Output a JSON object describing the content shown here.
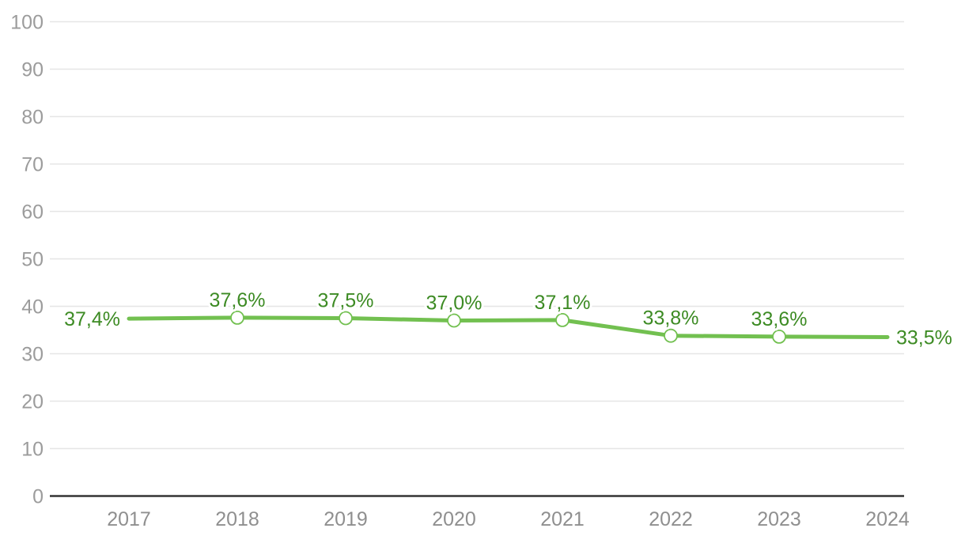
{
  "chart_data": {
    "type": "line",
    "title": "",
    "categories": [
      "2017",
      "2018",
      "2019",
      "2020",
      "2021",
      "2022",
      "2023",
      "2024"
    ],
    "series": [
      {
        "name": "percentage-series",
        "values": [
          37.4,
          37.6,
          37.5,
          37.0,
          37.1,
          33.8,
          33.6,
          33.5
        ],
        "value_labels": [
          "37,4%",
          "37,6%",
          "37,5%",
          "37,0%",
          "37,1%",
          "33,8%",
          "33,6%",
          "33,5%"
        ]
      }
    ],
    "xlabel": "",
    "ylabel": "",
    "ylim": [
      0,
      100
    ],
    "yticks": [
      0,
      10,
      20,
      30,
      40,
      50,
      60,
      70,
      80,
      90,
      100
    ],
    "ytick_labels": [
      "0",
      "10",
      "20",
      "30",
      "40",
      "50",
      "60",
      "70",
      "80",
      "90",
      "100"
    ],
    "grid": true,
    "legend": "none",
    "marker_style": "open-circle",
    "markers_on_categories": [
      "2018",
      "2019",
      "2020",
      "2021",
      "2022",
      "2023"
    ],
    "label_placement": {
      "first": "left-of-point",
      "middle": "above-point",
      "last": "right-of-point"
    },
    "colors": {
      "line": "#72c050",
      "marker_stroke": "#72c050",
      "marker_fill": "#ffffff",
      "data_label": "#3d8b24",
      "gridline": "#e6e6e6",
      "axis_line": "#333333",
      "y_tick_label": "#9c9c9c",
      "x_tick_label": "#8f8f8f",
      "background": "#ffffff"
    }
  }
}
